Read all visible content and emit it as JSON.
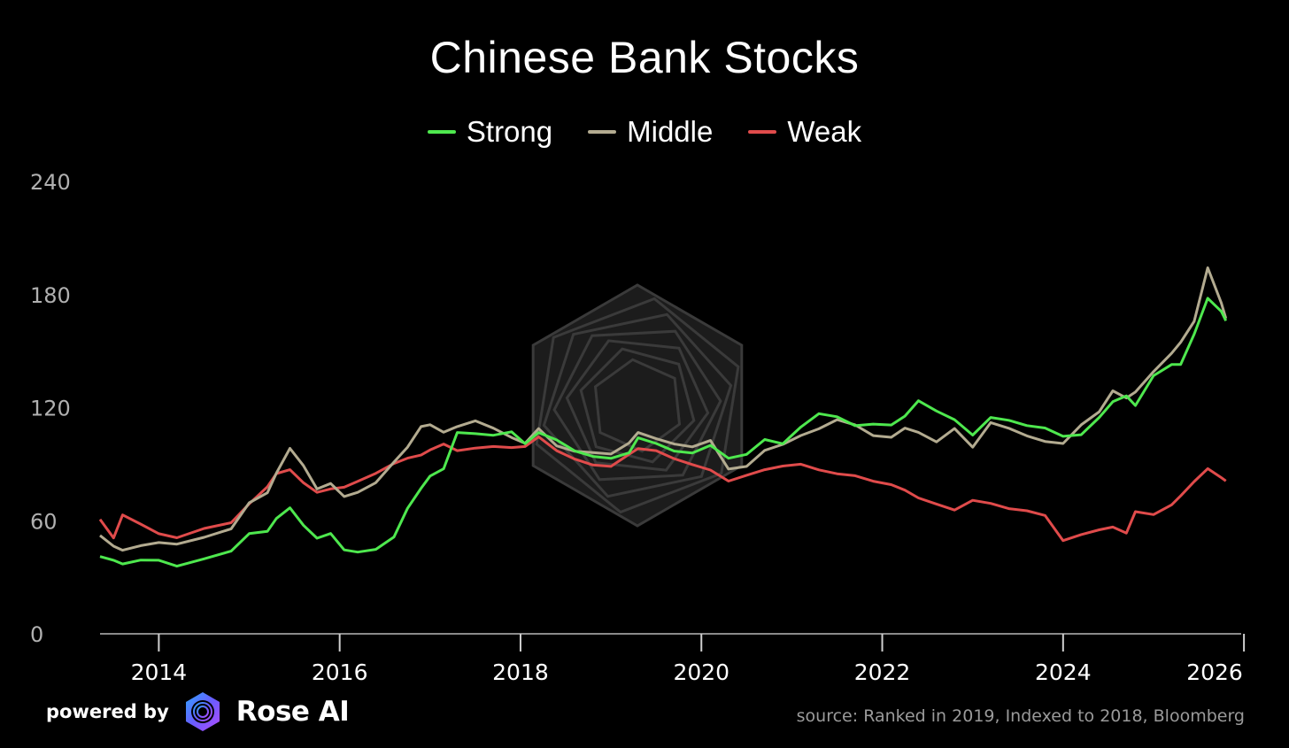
{
  "chart_data": {
    "type": "line",
    "title": "Chinese Bank Stocks",
    "xlabel": "",
    "ylabel": "",
    "ylim": [
      0,
      240
    ],
    "xlim": [
      2013.35,
      2025.95
    ],
    "yticks": [
      0,
      60,
      120,
      180,
      240
    ],
    "xticks": [
      2014,
      2016,
      2018,
      2020,
      2022,
      2024,
      2026
    ],
    "legend_position": "top-center",
    "grid": false,
    "series": [
      {
        "name": "Strong",
        "color": "#4ee84e",
        "x": [
          2013.35,
          2013.5,
          2013.6,
          2013.8,
          2014.0,
          2014.2,
          2014.5,
          2014.8,
          2015.0,
          2015.2,
          2015.3,
          2015.45,
          2015.6,
          2015.75,
          2015.9,
          2016.05,
          2016.2,
          2016.4,
          2016.6,
          2016.75,
          2016.9,
          2017.0,
          2017.15,
          2017.3,
          2017.5,
          2017.7,
          2017.9,
          2018.05,
          2018.2,
          2018.4,
          2018.6,
          2018.8,
          2019.0,
          2019.2,
          2019.3,
          2019.5,
          2019.7,
          2019.9,
          2020.1,
          2020.3,
          2020.5,
          2020.7,
          2020.9,
          2021.1,
          2021.3,
          2021.5,
          2021.7,
          2021.9,
          2022.1,
          2022.25,
          2022.4,
          2022.6,
          2022.8,
          2023.0,
          2023.2,
          2023.4,
          2023.6,
          2023.8,
          2024.0,
          2024.2,
          2024.4,
          2024.55,
          2024.7,
          2024.8,
          2025.0,
          2025.2,
          2025.3,
          2025.45,
          2025.6,
          2025.75,
          2025.8
        ],
        "values": [
          41,
          38,
          36,
          39,
          40,
          37,
          40,
          43,
          52,
          54,
          62,
          68,
          58,
          50,
          52,
          44,
          44,
          46,
          52,
          66,
          76,
          83,
          88,
          108,
          107,
          105,
          106,
          100,
          107,
          104,
          98,
          94,
          92,
          95,
          104,
          102,
          98,
          96,
          99,
          92,
          95,
          104,
          102,
          110,
          116,
          114,
          110,
          112,
          112,
          116,
          123,
          117,
          113,
          106,
          116,
          114,
          110,
          108,
          104,
          106,
          116,
          124,
          126,
          120,
          136,
          143,
          144,
          160,
          178,
          170,
          165
        ],
        "width": 3
      },
      {
        "name": "Middle",
        "color": "#b3ab90",
        "x": [
          2013.35,
          2013.5,
          2013.6,
          2013.8,
          2014.0,
          2014.2,
          2014.5,
          2014.8,
          2015.0,
          2015.2,
          2015.3,
          2015.45,
          2015.6,
          2015.75,
          2015.9,
          2016.05,
          2016.2,
          2016.4,
          2016.6,
          2016.75,
          2016.9,
          2017.0,
          2017.15,
          2017.3,
          2017.5,
          2017.7,
          2017.9,
          2018.05,
          2018.2,
          2018.4,
          2018.6,
          2018.8,
          2019.0,
          2019.2,
          2019.3,
          2019.5,
          2019.7,
          2019.9,
          2020.1,
          2020.3,
          2020.5,
          2020.7,
          2020.9,
          2021.1,
          2021.3,
          2021.5,
          2021.7,
          2021.9,
          2022.1,
          2022.25,
          2022.4,
          2022.6,
          2022.8,
          2023.0,
          2023.2,
          2023.4,
          2023.6,
          2023.8,
          2024.0,
          2024.2,
          2024.4,
          2024.55,
          2024.7,
          2024.8,
          2025.0,
          2025.2,
          2025.3,
          2025.45,
          2025.6,
          2025.75,
          2025.8
        ],
        "values": [
          51,
          46,
          45,
          48,
          49,
          47,
          50,
          55,
          70,
          76,
          86,
          98,
          88,
          76,
          80,
          74,
          76,
          80,
          90,
          98,
          110,
          112,
          108,
          110,
          112,
          108,
          104,
          102,
          110,
          100,
          96,
          95,
          95,
          102,
          108,
          104,
          100,
          98,
          102,
          88,
          90,
          98,
          100,
          104,
          108,
          114,
          112,
          106,
          104,
          108,
          106,
          102,
          110,
          100,
          112,
          108,
          104,
          102,
          102,
          112,
          118,
          128,
          124,
          128,
          140,
          150,
          155,
          165,
          193,
          175,
          168
        ],
        "width": 3
      },
      {
        "name": "Weak",
        "color": "#e04b4b",
        "x": [
          2013.35,
          2013.5,
          2013.6,
          2013.8,
          2014.0,
          2014.2,
          2014.5,
          2014.8,
          2015.0,
          2015.2,
          2015.3,
          2015.45,
          2015.6,
          2015.75,
          2015.9,
          2016.05,
          2016.2,
          2016.4,
          2016.6,
          2016.75,
          2016.9,
          2017.0,
          2017.15,
          2017.3,
          2017.5,
          2017.7,
          2017.9,
          2018.05,
          2018.2,
          2018.4,
          2018.6,
          2018.8,
          2019.0,
          2019.2,
          2019.3,
          2019.5,
          2019.7,
          2019.9,
          2020.1,
          2020.3,
          2020.5,
          2020.7,
          2020.9,
          2021.1,
          2021.3,
          2021.5,
          2021.7,
          2021.9,
          2022.1,
          2022.25,
          2022.4,
          2022.6,
          2022.8,
          2023.0,
          2023.2,
          2023.4,
          2023.6,
          2023.8,
          2024.0,
          2024.2,
          2024.4,
          2024.55,
          2024.7,
          2024.8,
          2025.0,
          2025.2,
          2025.3,
          2025.45,
          2025.6,
          2025.75,
          2025.8
        ],
        "values": [
          61,
          52,
          64,
          58,
          52,
          50,
          56,
          60,
          70,
          78,
          84,
          86,
          80,
          76,
          78,
          78,
          80,
          84,
          90,
          94,
          96,
          98,
          100,
          96,
          98,
          100,
          100,
          100,
          104,
          96,
          92,
          90,
          90,
          96,
          98,
          96,
          92,
          90,
          88,
          82,
          84,
          86,
          88,
          90,
          88,
          86,
          84,
          80,
          78,
          76,
          73,
          70,
          66,
          70,
          68,
          66,
          66,
          64,
          50,
          52,
          54,
          56,
          54,
          66,
          64,
          68,
          72,
          80,
          88,
          84,
          82
        ],
        "width": 3
      }
    ]
  },
  "footer": {
    "powered_by": "powered by",
    "brand": "Rose AI",
    "source": "source: Ranked in 2019, Indexed to 2018, Bloomberg"
  },
  "colors": {
    "background": "#000000",
    "axis": "#8a8a8a",
    "tick_label_y": "#b0b0b0",
    "tick_label_x": "#ffffff",
    "watermark": "#3a3a3a"
  }
}
